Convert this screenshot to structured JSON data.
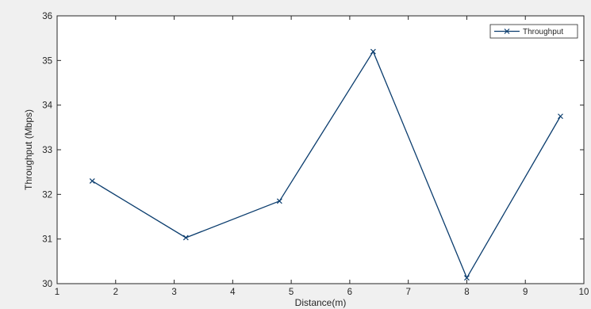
{
  "chart_data": {
    "type": "line",
    "title": "",
    "xlabel": "Distance(m)",
    "ylabel": "Throughput (Mbps)",
    "xlim": [
      1,
      10
    ],
    "ylim": [
      30,
      36
    ],
    "xticks": [
      1,
      2,
      3,
      4,
      5,
      6,
      7,
      8,
      9,
      10
    ],
    "yticks": [
      30,
      31,
      32,
      33,
      34,
      35,
      36
    ],
    "grid": false,
    "legend_position": "top-right",
    "series": [
      {
        "name": "Throughput",
        "color": "#0b3d6e",
        "marker": "x",
        "x": [
          1.6,
          3.2,
          4.8,
          6.4,
          8.0,
          9.6
        ],
        "y": [
          32.3,
          31.03,
          31.85,
          35.2,
          30.13,
          33.75
        ]
      }
    ]
  }
}
